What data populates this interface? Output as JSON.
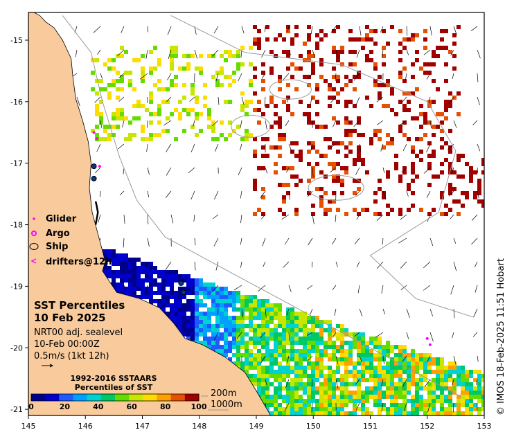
{
  "title": "SST Percentiles",
  "date": "10 Feb 2025",
  "product": "NRT00 adj. sealevel",
  "valid_time": "10-Feb 00:00Z",
  "vector_scale": "0.5m/s (1kt 12h)",
  "credit": "© IMOS 18-Feb-2025 11:51 Hobart",
  "legend": {
    "items": [
      {
        "symbol": "dot",
        "label": "Glider",
        "color": "#ff00ff"
      },
      {
        "symbol": "ring",
        "label": "Argo",
        "color": "#ff00ff"
      },
      {
        "symbol": "ellipse",
        "label": "Ship",
        "color": "#000000"
      },
      {
        "symbol": "arrow",
        "label": "drifters@12h",
        "color": "#ff00ff"
      }
    ]
  },
  "colorbar": {
    "title_line1": "1992-2016 SSTAARS",
    "title_line2": "Percentiles of SST",
    "tick_labels": [
      "0",
      "20",
      "40",
      "60",
      "80",
      "100"
    ],
    "colors": [
      "#00008b",
      "#0000cd",
      "#1e5aff",
      "#00a0ff",
      "#00d2d2",
      "#00c864",
      "#64dc00",
      "#c8e600",
      "#ffdc00",
      "#ffa000",
      "#e65000",
      "#a00000"
    ]
  },
  "contours": {
    "label_200m": "200m",
    "label_1000m": "1000m"
  },
  "axes": {
    "x_ticks": [
      {
        "value": 145,
        "label": "145"
      },
      {
        "value": 146,
        "label": "146"
      },
      {
        "value": 147,
        "label": "147"
      },
      {
        "value": 148,
        "label": "148"
      },
      {
        "value": 149,
        "label": "149"
      },
      {
        "value": 150,
        "label": "150"
      },
      {
        "value": 151,
        "label": "151"
      },
      {
        "value": 152,
        "label": "152"
      },
      {
        "value": 153,
        "label": "153"
      }
    ],
    "y_ticks": [
      {
        "value": -15,
        "label": "-15"
      },
      {
        "value": -16,
        "label": "-16"
      },
      {
        "value": -17,
        "label": "-17"
      },
      {
        "value": -18,
        "label": "-18"
      },
      {
        "value": -19,
        "label": "-19"
      },
      {
        "value": -20,
        "label": "-20"
      },
      {
        "value": -21,
        "label": "-21"
      }
    ],
    "lon_range": [
      145,
      153
    ],
    "lat_range": [
      -21.1,
      -14.55
    ]
  },
  "land": {
    "color": "#f9cb9c",
    "coastline": [
      [
        145.0,
        -14.55
      ],
      [
        145.1,
        -14.55
      ],
      [
        145.2,
        -14.6
      ],
      [
        145.3,
        -14.7
      ],
      [
        145.45,
        -14.8
      ],
      [
        145.6,
        -15.0
      ],
      [
        145.75,
        -15.3
      ],
      [
        145.78,
        -15.6
      ],
      [
        145.83,
        -15.95
      ],
      [
        145.95,
        -16.3
      ],
      [
        146.05,
        -16.65
      ],
      [
        146.1,
        -17.0
      ],
      [
        146.07,
        -17.4
      ],
      [
        146.12,
        -17.8
      ],
      [
        146.25,
        -18.25
      ],
      [
        146.35,
        -18.6
      ],
      [
        146.3,
        -18.75
      ],
      [
        146.55,
        -19.1
      ],
      [
        146.95,
        -19.2
      ],
      [
        147.3,
        -19.35
      ],
      [
        147.55,
        -19.6
      ],
      [
        147.75,
        -19.85
      ],
      [
        148.05,
        -19.95
      ],
      [
        148.45,
        -20.15
      ],
      [
        148.8,
        -20.4
      ],
      [
        149.0,
        -20.7
      ],
      [
        149.25,
        -21.1
      ],
      [
        145.0,
        -21.1
      ]
    ]
  },
  "platforms": {
    "ship_track": [
      [
        146.18,
        -17.62
      ],
      [
        146.2,
        -17.7
      ],
      [
        146.22,
        -17.8
      ],
      [
        146.2,
        -17.9
      ],
      [
        146.18,
        -18.0
      ]
    ],
    "gliders": [
      [
        146.15,
        -16.5
      ],
      [
        146.2,
        -16.6
      ],
      [
        152.0,
        -19.85
      ],
      [
        152.05,
        -19.95
      ],
      [
        146.25,
        -17.05
      ]
    ],
    "argo": [
      [
        146.15,
        -17.05
      ],
      [
        146.15,
        -17.25
      ],
      [
        147.68,
        -18.95
      ],
      [
        147.72,
        -19.1
      ]
    ]
  }
}
